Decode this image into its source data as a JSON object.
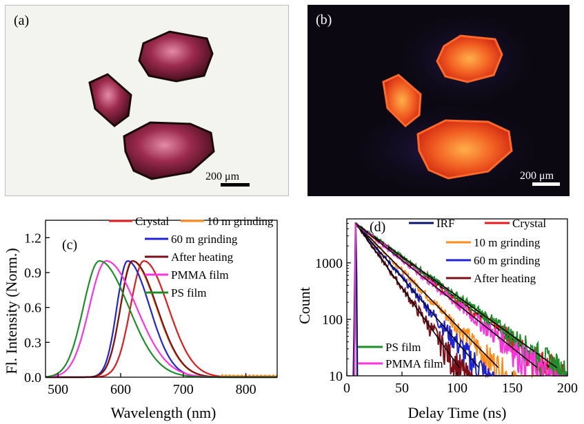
{
  "panels": {
    "a": {
      "label": "(a)",
      "scalebar": "200 μm"
    },
    "b": {
      "label": "(b)",
      "scalebar": "200 μm"
    }
  },
  "colors": {
    "crystal": "#e31a1c",
    "grind10": "#ff8c1a",
    "grind60": "#1f23d6",
    "heating": "#7a0f1a",
    "pmma": "#ff33dd",
    "ps": "#1c8f2b",
    "irf": "#0b1470"
  },
  "chart_data": [
    {
      "type": "line",
      "panel_label": "(c)",
      "xlabel": "Wavelength (nm)",
      "ylabel": "Fl. Intensity (Norm.)",
      "xlim": [
        480,
        850
      ],
      "ylim": [
        0,
        1.35
      ],
      "xticks": [
        "500",
        "600",
        "700",
        "800"
      ],
      "yticks": [
        "0.0",
        "0.3",
        "0.6",
        "0.9",
        "1.2"
      ],
      "legend": "top-right",
      "series": [
        {
          "name": "Crystal",
          "color_key": "crystal",
          "peak": 637,
          "wl": 30,
          "wr": 55
        },
        {
          "name": "10 m grinding",
          "color_key": "grind10",
          "peak": 618,
          "wl": 26,
          "wr": 55
        },
        {
          "name": "60 m grinding",
          "color_key": "grind60",
          "peak": 611,
          "wl": 24,
          "wr": 50
        },
        {
          "name": "After heating",
          "color_key": "heating",
          "peak": 619,
          "wl": 27,
          "wr": 55
        },
        {
          "name": "PMMA film",
          "color_key": "pmma",
          "peak": 577,
          "wl": 38,
          "wr": 68
        },
        {
          "name": "PS film",
          "color_key": "ps",
          "peak": 566,
          "wl": 36,
          "wr": 66
        }
      ]
    },
    {
      "type": "line",
      "panel_label": "(d)",
      "xlabel": "Delay Time (ns)",
      "ylabel": "Count",
      "xlim": [
        0,
        200
      ],
      "ylim": [
        10,
        6000
      ],
      "yscale": "log",
      "xticks": [
        "0",
        "50",
        "100",
        "150",
        "200"
      ],
      "yticks": [
        "10",
        "100",
        "1000"
      ],
      "series": [
        {
          "name": "IRF",
          "color_key": "irf",
          "tau": 1.5,
          "tmax": 9
        },
        {
          "name": "Crystal",
          "color_key": "crystal",
          "tau": 30,
          "tmax": 200
        },
        {
          "name": "10 m grinding",
          "color_key": "grind10",
          "tau": 22,
          "tmax": 175
        },
        {
          "name": "60 m grinding",
          "color_key": "grind60",
          "tau": 19,
          "tmax": 150
        },
        {
          "name": "After heating",
          "color_key": "heating",
          "tau": 16,
          "tmax": 130
        },
        {
          "name": "PS film",
          "color_key": "ps",
          "tau": 31,
          "tmax": 200
        },
        {
          "name": "PMMA film",
          "color_key": "pmma",
          "tau": 28,
          "tmax": 200
        }
      ]
    }
  ]
}
